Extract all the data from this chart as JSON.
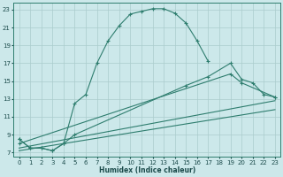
{
  "xlabel": "Humidex (Indice chaleur)",
  "bg_color": "#cce8ea",
  "grid_color": "#aacccc",
  "line_color": "#2e7d6e",
  "xlim": [
    -0.5,
    23.5
  ],
  "ylim": [
    6.5,
    23.8
  ],
  "yticks": [
    7,
    9,
    11,
    13,
    15,
    17,
    19,
    21,
    23
  ],
  "xticks": [
    0,
    1,
    2,
    3,
    4,
    5,
    6,
    7,
    8,
    9,
    10,
    11,
    12,
    13,
    14,
    15,
    16,
    17,
    18,
    19,
    20,
    21,
    22,
    23
  ],
  "curve1_x": [
    0,
    1,
    2,
    3,
    4,
    5,
    6,
    7,
    8,
    9,
    10,
    11,
    12,
    13,
    14,
    15,
    16,
    17
  ],
  "curve1_y": [
    8.5,
    7.5,
    7.5,
    7.2,
    8.0,
    12.5,
    13.5,
    17.0,
    19.5,
    21.2,
    22.5,
    22.8,
    23.1,
    23.1,
    22.6,
    21.5,
    19.5,
    17.2
  ],
  "curve2_x": [
    0,
    1,
    2,
    3,
    4,
    5,
    15,
    17,
    19,
    20,
    21,
    22,
    23
  ],
  "curve2_y": [
    8.5,
    7.5,
    7.5,
    7.2,
    8.0,
    9.0,
    14.5,
    15.5,
    17.0,
    15.2,
    14.8,
    13.5,
    13.2
  ],
  "curve3_x": [
    0,
    19,
    20,
    23
  ],
  "curve3_y": [
    8.0,
    15.8,
    14.8,
    13.2
  ],
  "curve4_x": [
    0,
    23
  ],
  "curve4_y": [
    7.5,
    12.8
  ],
  "curve5_x": [
    0,
    23
  ],
  "curve5_y": [
    7.2,
    11.8
  ]
}
